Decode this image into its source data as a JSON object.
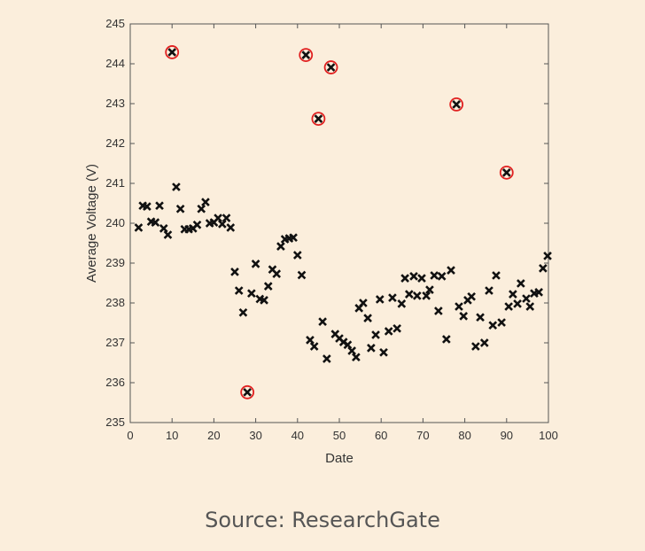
{
  "chart_data": {
    "type": "scatter",
    "title": "",
    "xlabel": "Date",
    "ylabel": "Average Voltage (V)",
    "xlim": [
      0,
      100
    ],
    "ylim": [
      235,
      245
    ],
    "xticks": [
      0,
      10,
      20,
      30,
      40,
      50,
      60,
      70,
      80,
      90,
      100
    ],
    "yticks": [
      235,
      236,
      237,
      238,
      239,
      240,
      241,
      242,
      243,
      244,
      245
    ],
    "grid": false,
    "marker": "x",
    "marker_color": "#111111",
    "outlier_color": "#e02020",
    "points": [
      [
        2,
        239.89
      ],
      [
        3,
        240.44
      ],
      [
        4,
        240.42
      ],
      [
        5,
        240.04
      ],
      [
        6,
        240.02
      ],
      [
        7,
        240.44
      ],
      [
        8,
        239.87
      ],
      [
        9,
        239.71
      ],
      [
        11,
        240.91
      ],
      [
        12,
        240.36
      ],
      [
        13,
        239.85
      ],
      [
        14,
        239.85
      ],
      [
        15,
        239.87
      ],
      [
        16,
        239.96
      ],
      [
        17,
        240.36
      ],
      [
        18,
        240.53
      ],
      [
        19,
        240.0
      ],
      [
        20,
        240.02
      ],
      [
        21,
        240.13
      ],
      [
        22,
        239.98
      ],
      [
        23,
        240.13
      ],
      [
        24,
        239.89
      ],
      [
        25,
        238.78
      ],
      [
        26,
        238.31
      ],
      [
        27,
        237.76
      ],
      [
        29,
        238.24
      ],
      [
        30,
        238.98
      ],
      [
        31,
        238.1
      ],
      [
        32,
        238.07
      ],
      [
        33,
        238.42
      ],
      [
        34,
        238.84
      ],
      [
        35,
        238.73
      ],
      [
        36,
        239.42
      ],
      [
        37,
        239.6
      ],
      [
        38,
        239.62
      ],
      [
        39,
        239.64
      ],
      [
        40,
        239.2
      ],
      [
        41,
        238.7
      ],
      [
        43,
        237.07
      ],
      [
        44,
        236.91
      ],
      [
        46,
        237.53
      ],
      [
        47,
        236.6
      ],
      [
        49,
        237.22
      ],
      [
        50,
        237.11
      ],
      [
        51,
        237.02
      ],
      [
        52,
        236.95
      ],
      [
        53,
        236.8
      ],
      [
        54,
        236.64
      ],
      [
        54.7,
        237.87
      ],
      [
        55.7,
        238.0
      ],
      [
        56.8,
        237.62
      ],
      [
        57.6,
        236.87
      ],
      [
        58.7,
        237.2
      ],
      [
        59.7,
        238.09
      ],
      [
        60.6,
        236.76
      ],
      [
        61.8,
        237.29
      ],
      [
        62.7,
        238.13
      ],
      [
        63.8,
        237.36
      ],
      [
        64.9,
        237.98
      ],
      [
        65.7,
        238.62
      ],
      [
        66.7,
        238.22
      ],
      [
        67.8,
        238.67
      ],
      [
        68.6,
        238.18
      ],
      [
        69.7,
        238.62
      ],
      [
        70.8,
        238.18
      ],
      [
        71.6,
        238.33
      ],
      [
        72.7,
        238.69
      ],
      [
        73.7,
        237.8
      ],
      [
        74.5,
        238.67
      ],
      [
        75.6,
        237.09
      ],
      [
        76.7,
        238.82
      ],
      [
        78.6,
        237.91
      ],
      [
        79.7,
        237.67
      ],
      [
        80.7,
        238.07
      ],
      [
        81.6,
        238.16
      ],
      [
        82.6,
        236.91
      ],
      [
        83.7,
        237.64
      ],
      [
        84.7,
        237.0
      ],
      [
        85.8,
        238.31
      ],
      [
        86.7,
        237.44
      ],
      [
        87.5,
        238.69
      ],
      [
        88.8,
        237.51
      ],
      [
        90.5,
        237.91
      ],
      [
        91.5,
        238.22
      ],
      [
        92.6,
        237.98
      ],
      [
        93.4,
        238.49
      ],
      [
        94.7,
        238.11
      ],
      [
        95.6,
        237.91
      ],
      [
        96.6,
        238.24
      ],
      [
        97.7,
        238.27
      ],
      [
        98.7,
        238.87
      ],
      [
        99.8,
        239.18
      ]
    ],
    "outliers": [
      [
        10,
        244.29
      ],
      [
        28,
        235.76
      ],
      [
        42,
        244.22
      ],
      [
        45,
        242.62
      ],
      [
        48,
        243.91
      ],
      [
        78,
        242.98
      ],
      [
        90,
        241.27
      ]
    ]
  },
  "caption": "Source: ResearchGate"
}
